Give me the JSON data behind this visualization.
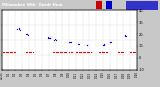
{
  "title_text": "Milwaukee Wth  Outdr Hum",
  "bg_color": "#c8c8c8",
  "plot_bg": "#ffffff",
  "title_bg": "#000000",
  "humidity_color": "#0000dd",
  "temp_color": "#dd0000",
  "legend_blue_color": "#0000cc",
  "legend_red_color": "#cc0000",
  "legend_bigblue_color": "#3333cc",
  "y1_ticks": [
    0,
    25,
    50,
    75,
    100
  ],
  "y1_tick_labels": [
    "0",
    "25.",
    "50.",
    "75.",
    "100"
  ],
  "y2_ticks": [
    -10,
    0,
    10,
    20,
    30,
    40
  ],
  "y2_tick_labels": [
    "-10",
    "0.",
    "10.",
    "20.",
    "30.",
    "40."
  ],
  "ylim1": [
    0,
    100
  ],
  "ylim2": [
    -10,
    40
  ],
  "xlim": [
    0,
    1
  ],
  "humidity_x": [
    0.115,
    0.125,
    0.13,
    0.135,
    0.18,
    0.185,
    0.19,
    0.195,
    0.34,
    0.345,
    0.35,
    0.355,
    0.36,
    0.39,
    0.395,
    0.4,
    0.5,
    0.505,
    0.51,
    0.515,
    0.565,
    0.57,
    0.63,
    0.635,
    0.75,
    0.755,
    0.76,
    0.8,
    0.805,
    0.81,
    0.91,
    0.915,
    0.92
  ],
  "humidity_y": [
    68,
    70,
    69,
    67,
    60,
    61,
    60,
    59,
    54,
    55,
    54,
    53,
    54,
    50,
    51,
    50,
    47,
    47,
    46,
    47,
    44,
    44,
    41,
    41,
    42,
    43,
    42,
    46,
    47,
    46,
    58,
    57,
    56
  ],
  "temp_x": [
    0.01,
    0.02,
    0.03,
    0.04,
    0.05,
    0.06,
    0.07,
    0.08,
    0.09,
    0.1,
    0.18,
    0.19,
    0.2,
    0.21,
    0.22,
    0.23,
    0.38,
    0.39,
    0.4,
    0.41,
    0.42,
    0.43,
    0.44,
    0.45,
    0.46,
    0.47,
    0.48,
    0.5,
    0.51,
    0.52,
    0.55,
    0.56,
    0.57,
    0.58,
    0.59,
    0.6,
    0.61,
    0.62,
    0.63,
    0.64,
    0.65,
    0.66,
    0.72,
    0.73,
    0.74,
    0.75,
    0.76,
    0.77,
    0.78,
    0.86,
    0.87,
    0.88,
    0.89,
    0.9,
    0.95,
    0.96,
    0.97,
    0.98,
    0.99
  ],
  "temp_y": [
    5,
    5,
    5,
    5,
    5,
    5,
    5,
    5,
    5,
    5,
    5,
    5,
    5,
    5,
    5,
    5,
    5,
    5,
    5,
    5,
    5,
    5,
    5,
    5,
    5,
    5,
    5,
    5,
    5,
    5,
    5,
    5,
    5,
    5,
    5,
    5,
    5,
    5,
    5,
    5,
    5,
    5,
    5,
    5,
    5,
    5,
    5,
    5,
    5,
    5,
    5,
    5,
    5,
    5,
    5,
    5,
    5,
    5,
    5
  ],
  "x_tick_pos": [
    0.0,
    0.05,
    0.1,
    0.15,
    0.2,
    0.25,
    0.3,
    0.35,
    0.4,
    0.45,
    0.5,
    0.55,
    0.6,
    0.65,
    0.7,
    0.75,
    0.8,
    0.85,
    0.9,
    0.95,
    1.0
  ],
  "x_tick_labels": [
    "12/25",
    "1/1",
    "1/2",
    "1/3",
    "1/4",
    "1/5",
    "1/6",
    "1/7",
    "1/8",
    "1/9",
    "1/10",
    "1/11",
    "1/12",
    "1/13",
    "1/14",
    "1/15",
    "1/16",
    "1/17",
    "1/18",
    "1/19",
    "1/20"
  ],
  "figsize": [
    1.6,
    0.87
  ],
  "dpi": 100
}
